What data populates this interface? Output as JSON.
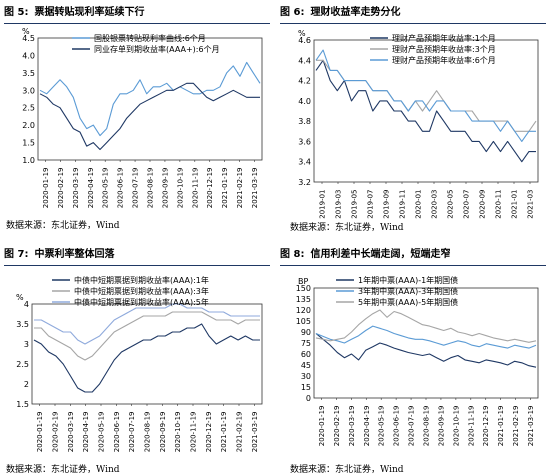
{
  "source_label": "数据来源：东北证券，Wind",
  "panels": [
    {
      "fig": "图 5:",
      "title": "票据转贴现利率延续下行",
      "chart_data": {
        "type": "line",
        "ylabel": "%",
        "ylim": [
          1.0,
          4.5
        ],
        "yticks": [
          "1.0",
          "1.5",
          "2.0",
          "2.5",
          "3.0",
          "3.5",
          "4.0",
          "4.5"
        ],
        "xticks": [
          "2020-01-19",
          "2020-02-19",
          "2020-03-19",
          "2020-04-19",
          "2020-05-19",
          "2020-06-19",
          "2020-07-19",
          "2020-08-19",
          "2020-09-19",
          "2020-10-19",
          "2020-11-19",
          "2020-12-19",
          "2021-01-19",
          "2021-02-19",
          "2021-03-19"
        ],
        "series": [
          {
            "name": "国股银票转贴现利率曲线:6个月",
            "color": "#5b9bd5",
            "values": [
              3.0,
              2.9,
              3.1,
              3.3,
              3.1,
              2.8,
              2.2,
              1.9,
              2.0,
              1.7,
              1.9,
              2.6,
              2.9,
              2.9,
              3.0,
              3.3,
              2.9,
              3.1,
              3.1,
              3.2,
              3.0,
              3.1,
              3.0,
              2.9,
              2.9,
              3.0,
              3.0,
              3.1,
              3.5,
              3.7,
              3.4,
              3.8,
              3.5,
              3.2
            ]
          },
          {
            "name": "同业存单到期收益率(AAA+):6个月",
            "color": "#1f3864",
            "values": [
              2.9,
              2.8,
              2.6,
              2.5,
              2.2,
              1.9,
              1.8,
              1.4,
              1.5,
              1.3,
              1.5,
              1.7,
              1.9,
              2.2,
              2.4,
              2.6,
              2.7,
              2.8,
              2.9,
              3.0,
              3.0,
              3.1,
              3.2,
              3.2,
              3.0,
              2.8,
              2.7,
              2.8,
              2.9,
              3.0,
              2.9,
              2.8,
              2.8,
              2.8
            ]
          }
        ]
      }
    },
    {
      "fig": "图 6:",
      "title": "理财收益率走势分化",
      "chart_data": {
        "type": "line",
        "ylabel": "%",
        "ylim": [
          3.2,
          4.6
        ],
        "yticks": [
          "3.2",
          "3.4",
          "3.6",
          "3.8",
          "4.0",
          "4.2",
          "4.4",
          "4.6"
        ],
        "xticks": [
          "2019-01",
          "2019-03",
          "2019-05",
          "2019-07",
          "2019-09",
          "2019-11",
          "2020-01",
          "2020-03",
          "2020-05",
          "2020-07",
          "2020-09",
          "2020-11",
          "2021-01",
          "2021-03"
        ],
        "series": [
          {
            "name": "理财产品预期年收益率:1个月",
            "color": "#1f3864",
            "values": [
              4.3,
              4.4,
              4.2,
              4.1,
              4.2,
              4.0,
              4.1,
              4.1,
              3.9,
              4.0,
              4.0,
              3.9,
              3.9,
              3.8,
              3.8,
              3.7,
              3.7,
              3.9,
              3.8,
              3.7,
              3.7,
              3.7,
              3.6,
              3.6,
              3.5,
              3.6,
              3.5,
              3.6,
              3.5,
              3.4,
              3.5,
              3.5
            ]
          },
          {
            "name": "理财产品预期年收益率:3个月",
            "color": "#a6a6a6",
            "values": [
              4.4,
              4.4,
              4.3,
              4.3,
              4.2,
              4.2,
              4.2,
              4.2,
              4.1,
              4.1,
              4.1,
              4.0,
              4.0,
              3.9,
              4.0,
              3.9,
              4.0,
              4.1,
              4.0,
              3.9,
              3.9,
              3.9,
              3.9,
              3.8,
              3.8,
              3.8,
              3.8,
              3.8,
              3.7,
              3.7,
              3.7,
              3.8
            ]
          },
          {
            "name": "理财产品预期年收益率:6个月",
            "color": "#5b9bd5",
            "values": [
              4.4,
              4.5,
              4.3,
              4.3,
              4.2,
              4.2,
              4.2,
              4.2,
              4.1,
              4.1,
              4.1,
              4.0,
              4.0,
              3.9,
              4.0,
              4.0,
              3.9,
              4.0,
              4.0,
              3.9,
              3.9,
              3.9,
              3.8,
              3.8,
              3.8,
              3.8,
              3.7,
              3.8,
              3.7,
              3.6,
              3.7,
              3.7
            ]
          }
        ]
      }
    },
    {
      "fig": "图 7:",
      "title": "中票利率整体回落",
      "chart_data": {
        "type": "line",
        "ylabel": "%",
        "ylim": [
          1.5,
          4.0
        ],
        "yticks": [
          "1.5",
          "2",
          "2.5",
          "3",
          "3.5",
          "4"
        ],
        "xticks": [
          "2020-01-19",
          "2020-02-19",
          "2020-03-19",
          "2020-04-19",
          "2020-05-19",
          "2020-06-19",
          "2020-07-19",
          "2020-08-19",
          "2020-09-19",
          "2020-10-19",
          "2020-11-19",
          "2020-12-19",
          "2021-01-19",
          "2021-02-19",
          "2021-03-19"
        ],
        "series": [
          {
            "name": "中债中短期票据到期收益率(AAA):1年",
            "color": "#1f3864",
            "values": [
              3.1,
              3.0,
              2.8,
              2.7,
              2.5,
              2.2,
              1.9,
              1.8,
              1.8,
              2.0,
              2.3,
              2.6,
              2.8,
              2.9,
              3.0,
              3.1,
              3.1,
              3.2,
              3.2,
              3.3,
              3.3,
              3.4,
              3.4,
              3.5,
              3.2,
              3.0,
              3.1,
              3.2,
              3.1,
              3.2,
              3.1,
              3.1
            ]
          },
          {
            "name": "中债中短期票据到期收益率(AAA):3年",
            "color": "#a6a6a6",
            "values": [
              3.4,
              3.4,
              3.2,
              3.1,
              3.0,
              2.9,
              2.7,
              2.6,
              2.7,
              2.9,
              3.1,
              3.3,
              3.4,
              3.5,
              3.6,
              3.7,
              3.7,
              3.7,
              3.7,
              3.8,
              3.8,
              3.8,
              3.8,
              3.8,
              3.7,
              3.6,
              3.6,
              3.6,
              3.5,
              3.6,
              3.6,
              3.6
            ]
          },
          {
            "name": "中债中短期票据到期收益率(AAA):5年",
            "color": "#8faadc",
            "values": [
              3.6,
              3.6,
              3.5,
              3.4,
              3.3,
              3.3,
              3.1,
              3.0,
              3.1,
              3.2,
              3.4,
              3.6,
              3.7,
              3.8,
              3.9,
              3.9,
              3.9,
              3.9,
              3.9,
              4.0,
              4.0,
              3.9,
              3.9,
              3.9,
              3.8,
              3.8,
              3.8,
              3.7,
              3.7,
              3.7,
              3.7,
              3.7
            ]
          }
        ]
      }
    },
    {
      "fig": "图 8:",
      "title": "信用利差中长端走阔，短端走窄",
      "chart_data": {
        "type": "line",
        "ylabel": "BP",
        "ylim": [
          0,
          150
        ],
        "yticks": [
          "0",
          "15",
          "30",
          "45",
          "60",
          "75",
          "90",
          "105",
          "120",
          "135",
          "150"
        ],
        "xticks": [
          "2020-01-19",
          "2020-02-19",
          "2020-03-19",
          "2020-04-19",
          "2020-05-19",
          "2020-06-19",
          "2020-07-19",
          "2020-08-19",
          "2020-09-19",
          "2020-10-19",
          "2020-11-19",
          "2020-12-19",
          "2021-01-19",
          "2021-02-19",
          "2021-03-19"
        ],
        "series": [
          {
            "name": "1年期中票(AAA)-1年期国债",
            "color": "#1f3864",
            "values": [
              88,
              80,
              72,
              62,
              55,
              60,
              52,
              65,
              70,
              75,
              72,
              68,
              65,
              62,
              60,
              58,
              60,
              55,
              50,
              55,
              58,
              52,
              50,
              48,
              52,
              50,
              48,
              45,
              50,
              48,
              44,
              42
            ]
          },
          {
            "name": "3年期中票(AAA)-3年期国债",
            "color": "#5b9bd5",
            "values": [
              88,
              84,
              80,
              78,
              75,
              80,
              85,
              92,
              98,
              95,
              92,
              88,
              85,
              82,
              80,
              80,
              78,
              75,
              72,
              75,
              78,
              76,
              72,
              70,
              74,
              72,
              70,
              68,
              72,
              70,
              68,
              72
            ]
          },
          {
            "name": "5年期中票(AAA)-5年期国债",
            "color": "#a6a6a6",
            "values": [
              82,
              80,
              78,
              80,
              82,
              90,
              100,
              108,
              115,
              120,
              110,
              118,
              115,
              110,
              105,
              100,
              98,
              95,
              92,
              95,
              90,
              88,
              85,
              88,
              85,
              82,
              80,
              78,
              80,
              78,
              76,
              78
            ]
          }
        ]
      }
    }
  ]
}
